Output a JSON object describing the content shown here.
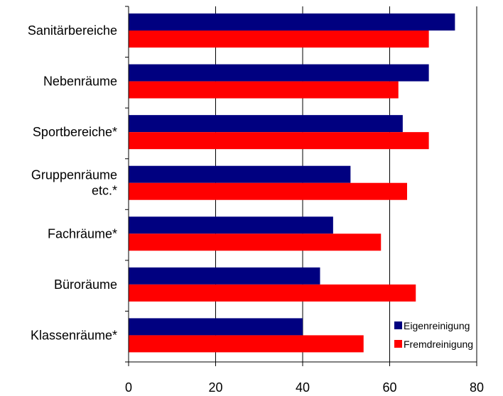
{
  "chart_data": {
    "type": "bar",
    "orientation": "horizontal",
    "categories": [
      [
        "Sanitärbereiche"
      ],
      [
        "Nebenräume"
      ],
      [
        "Sportbereiche*"
      ],
      [
        "Gruppenräume",
        "etc.*"
      ],
      [
        "Fachräume*"
      ],
      [
        "Büroräume"
      ],
      [
        "Klassenräume*"
      ]
    ],
    "series": [
      {
        "name": "Eigenreinigung",
        "color": "#000080",
        "values": [
          75,
          69,
          63,
          51,
          47,
          44,
          40
        ]
      },
      {
        "name": "Fremdreinigung",
        "color": "#ff0000",
        "values": [
          69,
          62,
          69,
          64,
          58,
          66,
          54
        ]
      }
    ],
    "xlim": [
      0,
      80
    ],
    "xticks": [
      0,
      20,
      40,
      60,
      80
    ],
    "grid": "vertical",
    "legend": "bottom-right",
    "title": "",
    "xlabel": "",
    "ylabel": ""
  }
}
